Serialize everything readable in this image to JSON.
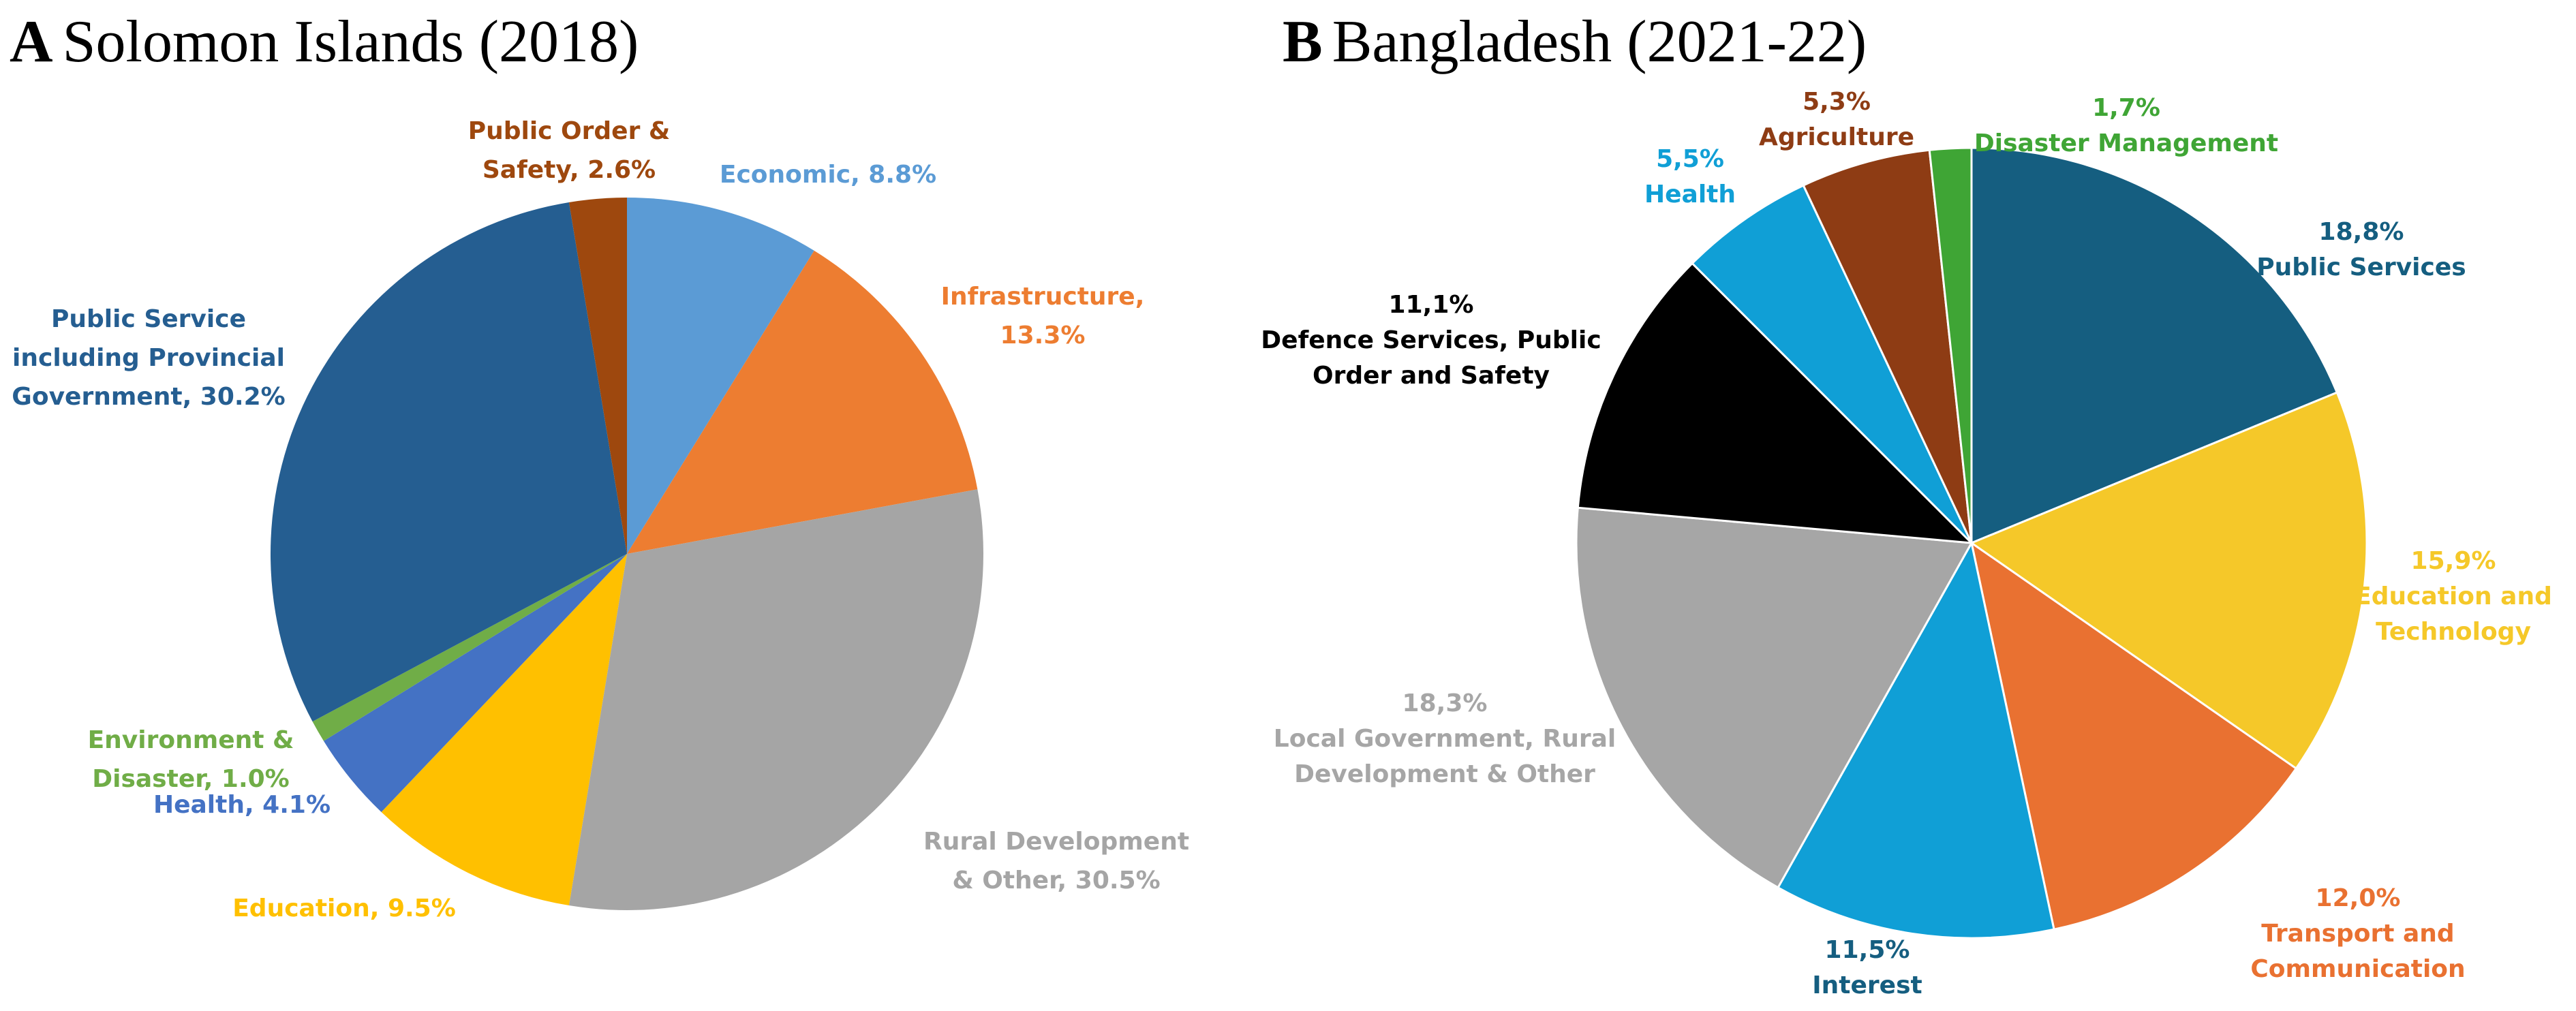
{
  "chart_data": [
    {
      "type": "pie",
      "panel": "A",
      "title": "Solomon Islands (2018)",
      "slices": [
        {
          "name": "Economic",
          "value": 8.8,
          "color": "#5B9BD5",
          "label_lines": [
            "Economic, 8.8%"
          ]
        },
        {
          "name": "Infrastructure",
          "value": 13.3,
          "color": "#ED7D31",
          "label_lines": [
            "Infrastructure,",
            "13.3%"
          ]
        },
        {
          "name": "Rural Development & Other",
          "value": 30.5,
          "color": "#A5A5A5",
          "label_lines": [
            "Rural Development",
            "& Other, 30.5%"
          ]
        },
        {
          "name": "Education",
          "value": 9.5,
          "color": "#FFC000",
          "label_lines": [
            "Education, 9.5%"
          ]
        },
        {
          "name": "Health",
          "value": 4.1,
          "color": "#4472C4",
          "label_lines": [
            "Health, 4.1%"
          ]
        },
        {
          "name": "Environment & Disaster",
          "value": 1.0,
          "color": "#70AD47",
          "label_lines": [
            "Environment &",
            "Disaster, 1.0%"
          ]
        },
        {
          "name": "Public Service including Provincial Government",
          "value": 30.2,
          "color": "#255E91",
          "label_lines": [
            "Public Service",
            "including Provincial",
            "Government, 30.2%"
          ]
        },
        {
          "name": "Public Order & Safety",
          "value": 2.6,
          "color": "#9E480E",
          "label_lines": [
            "Public Order &",
            "Safety, 2.6%"
          ]
        }
      ]
    },
    {
      "type": "pie",
      "panel": "B",
      "title": "Bangladesh (2021-22)",
      "slices": [
        {
          "name": "Public Services",
          "value": 18.8,
          "color": "#155E80",
          "label_lines": [
            "18,8%",
            "Public Services"
          ]
        },
        {
          "name": "Education and Technology",
          "value": 15.9,
          "color": "#F5C829",
          "label_lines": [
            "15,9%",
            "Education and",
            "Technology"
          ]
        },
        {
          "name": "Transport and Communication",
          "value": 12.0,
          "color": "#E97131",
          "label_lines": [
            "12,0%",
            "Transport and",
            "Communication"
          ]
        },
        {
          "name": "Interest",
          "value": 11.5,
          "color": "#109FD6",
          "label_lines": [
            "11,5%",
            "Interest"
          ]
        },
        {
          "name": "Local Government, Rural Development & Other",
          "value": 18.3,
          "color": "#A6A6A6",
          "label_lines": [
            "18,3%",
            "Local Government, Rural",
            "Development & Other"
          ]
        },
        {
          "name": "Defence Services, Public Order and Safety",
          "value": 11.1,
          "color": "#000000",
          "label_lines": [
            "11,1%",
            "Defence Services, Public",
            "Order and Safety"
          ]
        },
        {
          "name": "Health",
          "value": 5.5,
          "color": "#109FD6",
          "label_lines": [
            "5,5%",
            "Health"
          ]
        },
        {
          "name": "Agriculture",
          "value": 5.3,
          "color": "#8E3C14",
          "label_lines": [
            "5,3%",
            "Agriculture"
          ]
        },
        {
          "name": "Disaster Management",
          "value": 1.7,
          "color": "#3FA535",
          "label_lines": [
            "1,7%",
            "Disaster Management"
          ]
        }
      ]
    }
  ],
  "label_colors": {
    "A": [
      "#5B9BD5",
      "#ED7D31",
      "#A5A5A5",
      "#FFC000",
      "#4472C4",
      "#70AD47",
      "#255E91",
      "#9E480E"
    ],
    "B": [
      "#155E80",
      "#F5C829",
      "#E97131",
      "#155E80",
      "#A6A6A6",
      "#000000",
      "#109FD6",
      "#8E3C14",
      "#3FA535"
    ]
  }
}
